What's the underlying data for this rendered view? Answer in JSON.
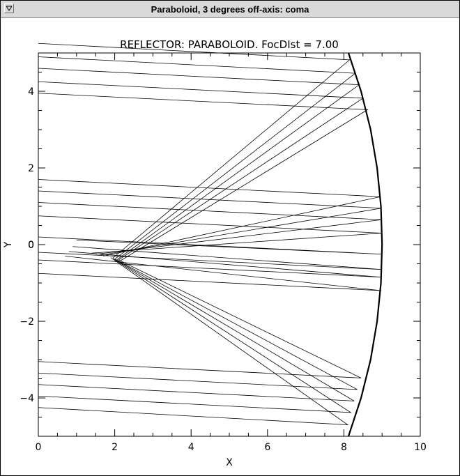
{
  "window": {
    "title": "Paraboloid, 3 degrees off-axis: coma",
    "menu_icon": "down-triangle-icon"
  },
  "chart_data": {
    "type": "line",
    "title": "REFLECTOR: PARABOLOID.  FocDIst = 7.00",
    "xlabel": "X",
    "ylabel": "Y",
    "xlim": [
      0,
      10
    ],
    "ylim": [
      -5,
      5
    ],
    "x_ticks": [
      "0",
      "2",
      "4",
      "6",
      "8",
      "10"
    ],
    "y_ticks": [
      "-4",
      "-2",
      "0",
      "2",
      "4"
    ],
    "grid": false,
    "legend": "none",
    "focal_distance": 7.0,
    "off_axis_degrees": 3,
    "mirror": {
      "x": [
        8.12,
        8.45,
        8.7,
        8.87,
        8.97,
        9.0,
        8.97,
        8.87,
        8.7,
        8.45,
        8.12
      ],
      "y": [
        5.0,
        4.0,
        3.0,
        2.0,
        1.0,
        0.0,
        -1.0,
        -2.0,
        -3.0,
        -4.0,
        -5.0
      ]
    },
    "rays": [
      {
        "x": [
          0.0,
          8.15,
          1.95
        ],
        "y": [
          5.25,
          4.82,
          -0.35
        ]
      },
      {
        "x": [
          0.0,
          8.3,
          2.0
        ],
        "y": [
          4.9,
          4.47,
          -0.38
        ]
      },
      {
        "x": [
          0.0,
          8.4,
          2.05
        ],
        "y": [
          4.6,
          4.17,
          -0.4
        ]
      },
      {
        "x": [
          0.0,
          8.5,
          2.1
        ],
        "y": [
          4.25,
          3.82,
          -0.4
        ]
      },
      {
        "x": [
          0.0,
          8.62,
          2.15
        ],
        "y": [
          3.95,
          3.52,
          -0.42
        ]
      },
      {
        "x": [
          0.0,
          8.96,
          1.7
        ],
        "y": [
          1.7,
          1.25,
          -0.3
        ]
      },
      {
        "x": [
          0.0,
          8.98,
          1.6
        ],
        "y": [
          1.4,
          0.95,
          -0.28
        ]
      },
      {
        "x": [
          0.0,
          8.99,
          1.5
        ],
        "y": [
          1.1,
          0.65,
          -0.25
        ]
      },
      {
        "x": [
          0.0,
          8.99,
          1.4
        ],
        "y": [
          0.75,
          0.3,
          -0.22
        ]
      },
      {
        "x": [
          0.0,
          9.0,
          1.0
        ],
        "y": [
          0.2,
          -0.25,
          0.12
        ]
      },
      {
        "x": [
          0.0,
          9.0,
          0.9
        ],
        "y": [
          -0.2,
          -0.65,
          -0.05
        ]
      },
      {
        "x": [
          0.0,
          8.99,
          0.8
        ],
        "y": [
          -0.4,
          -0.85,
          -0.18
        ]
      },
      {
        "x": [
          0.0,
          8.98,
          0.7
        ],
        "y": [
          -0.75,
          -1.2,
          -0.3
        ]
      },
      {
        "x": [
          0.0,
          8.45,
          2.1
        ],
        "y": [
          -3.05,
          -3.48,
          -0.4
        ]
      },
      {
        "x": [
          0.0,
          8.35,
          2.05
        ],
        "y": [
          -3.35,
          -3.78,
          -0.4
        ]
      },
      {
        "x": [
          0.0,
          8.27,
          2.0
        ],
        "y": [
          -3.65,
          -4.08,
          -0.38
        ]
      },
      {
        "x": [
          0.0,
          8.18,
          1.95
        ],
        "y": [
          -3.95,
          -4.38,
          -0.36
        ]
      },
      {
        "x": [
          0.0,
          8.1,
          1.9
        ],
        "y": [
          -4.25,
          -4.7,
          -0.34
        ]
      }
    ]
  }
}
